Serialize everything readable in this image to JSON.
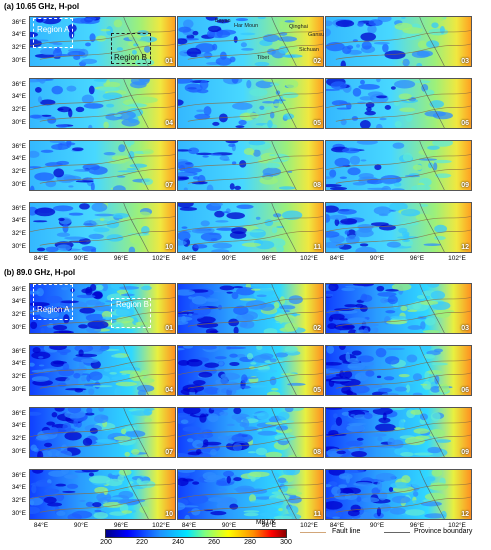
{
  "section_a": {
    "label": "(a)",
    "title": "10.65 GHz, H-pol"
  },
  "section_b": {
    "label": "(b)",
    "title": "89.0 GHz, H-pol"
  },
  "y_ticks": [
    "36°E",
    "34°E",
    "32°E",
    "30°E"
  ],
  "x_ticks": [
    "84°E",
    "90°E",
    "96°E",
    "102°E"
  ],
  "panel_numbers": [
    "01",
    "02",
    "03",
    "04",
    "05",
    "06",
    "07",
    "08",
    "09",
    "10",
    "11",
    "12"
  ],
  "regions": {
    "a": "Region A",
    "b": "Region B"
  },
  "provinces": [
    "Bayan",
    "Har Moun",
    "Qinghai",
    "Gansu",
    "Tibet",
    "Sichuan"
  ],
  "colorbar": {
    "unit": "MBT/K",
    "ticks": [
      "200",
      "220",
      "240",
      "260",
      "280",
      "300"
    ],
    "colors": [
      "#00008b",
      "#0000ff",
      "#1e90ff",
      "#00e5ff",
      "#7fff7f",
      "#ffff00",
      "#ff8c00",
      "#ff0000",
      "#8b0000"
    ]
  },
  "legend": {
    "fault_line": "Fault line",
    "fault_color": "#d2a679",
    "province_boundary": "Province boundary",
    "province_color": "#666666"
  }
}
